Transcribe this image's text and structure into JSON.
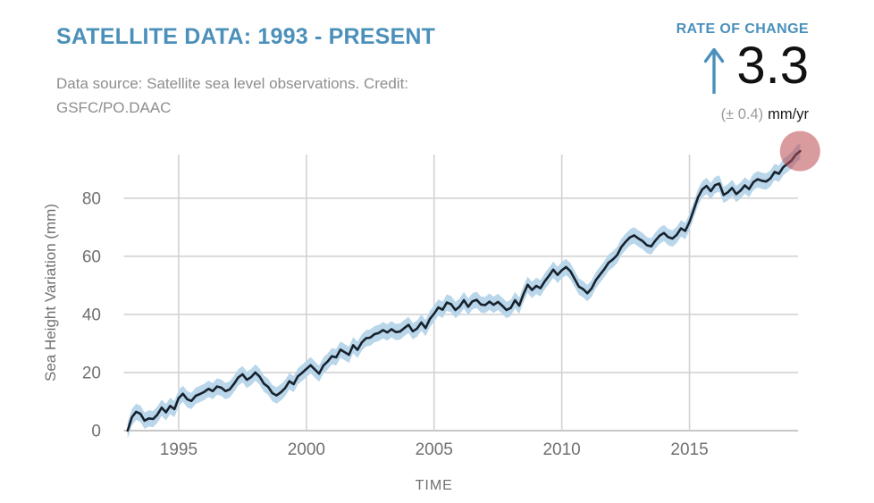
{
  "header": {
    "title": "SATELLITE DATA: 1993 - PRESENT",
    "subtitle_line1": "Data source: Satellite sea level observations. Credit:",
    "subtitle_line2": "GSFC/PO.DAAC"
  },
  "rate_panel": {
    "label": "RATE OF CHANGE",
    "arrow_icon": "up-arrow",
    "value": "3.3",
    "uncertainty": "(± 0.4)",
    "unit": "mm/yr"
  },
  "colors": {
    "accent_blue": "#4a90ba",
    "value_text": "#111111",
    "muted_text": "#8e8e8e",
    "axis_text": "#707070",
    "gridline": "#d2d2d2",
    "axis_line": "#c7c7c7",
    "line": "#17222d",
    "band": "#b9d6ea",
    "marker": "rgba(188,72,78,0.55)"
  },
  "chart_data": {
    "type": "line",
    "title": "",
    "xlabel": "TIME",
    "ylabel": "Sea Height Variation (mm)",
    "x_ticks": [
      1995,
      2000,
      2005,
      2010,
      2015
    ],
    "y_ticks": [
      0,
      20,
      40,
      60,
      80
    ],
    "xlim": [
      1992.85,
      2019.6
    ],
    "ylim": [
      0,
      95
    ],
    "grid": true,
    "legend": "none",
    "band_halfwidth_mm": 2.8,
    "x_start": 1993.0,
    "x_step_years": 0.16667,
    "x_end": 2019.33,
    "series": [
      {
        "name": "Sea height variation (mm)",
        "values": [
          0.0,
          4.6,
          6.5,
          5.8,
          3.4,
          4.2,
          4.0,
          5.5,
          7.9,
          6.3,
          8.5,
          7.4,
          11.2,
          12.7,
          10.8,
          10.2,
          12.0,
          12.6,
          13.3,
          14.4,
          13.6,
          15.2,
          14.8,
          13.6,
          14.2,
          16.1,
          18.3,
          19.4,
          17.5,
          18.4,
          20.0,
          18.6,
          16.2,
          15.1,
          12.9,
          12.1,
          13.2,
          14.6,
          17.0,
          16.0,
          18.7,
          19.9,
          21.2,
          22.5,
          21.0,
          19.6,
          22.4,
          23.8,
          25.6,
          25.2,
          27.9,
          27.0,
          26.1,
          29.4,
          27.8,
          30.3,
          31.8,
          32.0,
          33.2,
          33.6,
          34.6,
          33.8,
          34.9,
          33.9,
          34.1,
          35.3,
          36.4,
          34.2,
          35.1,
          37.2,
          35.3,
          38.4,
          40.2,
          42.4,
          41.6,
          44.1,
          43.5,
          41.5,
          42.7,
          44.9,
          42.6,
          44.5,
          45.0,
          43.4,
          43.2,
          44.4,
          43.3,
          44.3,
          43.0,
          41.5,
          42.2,
          44.9,
          43.0,
          47.0,
          50.2,
          48.4,
          49.8,
          49.0,
          51.4,
          53.3,
          55.4,
          53.6,
          55.2,
          56.3,
          54.9,
          52.3,
          49.6,
          48.7,
          47.3,
          48.9,
          51.8,
          53.7,
          55.6,
          57.8,
          58.9,
          60.4,
          63.2,
          65.0,
          66.5,
          67.2,
          66.1,
          65.2,
          63.8,
          63.4,
          65.4,
          67.1,
          68.0,
          66.6,
          66.1,
          67.4,
          69.6,
          68.7,
          71.8,
          76.0,
          80.3,
          83.0,
          84.2,
          82.4,
          84.5,
          85.0,
          81.1,
          82.0,
          83.5,
          81.4,
          82.6,
          84.4,
          83.1,
          85.5,
          86.5,
          86.0,
          85.7,
          86.8,
          89.0,
          88.4,
          90.6,
          91.8,
          93.0,
          95.0,
          96.2
        ]
      }
    ],
    "endpoint_marker": {
      "year": 2019.33,
      "value_mm": 96.2,
      "style": "translucent-red-circle"
    }
  }
}
